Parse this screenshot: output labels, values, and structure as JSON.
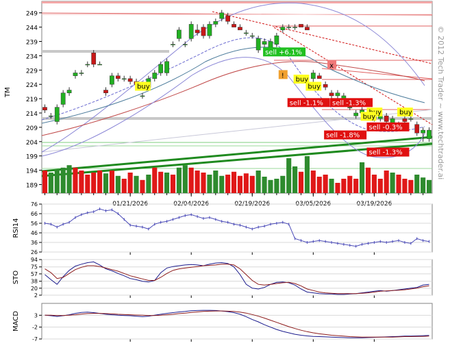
{
  "chart_data": [
    {
      "type": "candlestick",
      "ticker": "TM",
      "watermark": "© 2012 Tech Trader ~ www.techtrader.ai",
      "ylim": [
        186,
        253
      ],
      "y_ticks": [
        189,
        194,
        199,
        204,
        209,
        214,
        219,
        224,
        229,
        234,
        239,
        244,
        249
      ],
      "x_ticks": [
        "01/21/2026",
        "02/04/2026",
        "02/19/2026",
        "03/05/2026",
        "03/19/2026"
      ],
      "x_tick_index": [
        14,
        24,
        34,
        44,
        54
      ],
      "n_bars": 64,
      "candles": [
        {
          "o": 216,
          "h": 217,
          "l": 214,
          "c": 215
        },
        {
          "o": 213,
          "h": 214,
          "l": 212,
          "c": 213
        },
        {
          "o": 211,
          "h": 217,
          "l": 210,
          "c": 216
        },
        {
          "o": 217,
          "h": 222,
          "l": 216,
          "c": 221
        },
        {
          "o": 221,
          "h": 223,
          "l": 220,
          "c": 222
        },
        {
          "o": 227,
          "h": 229,
          "l": 226,
          "c": 228
        },
        {
          "o": 228,
          "h": 229,
          "l": 227,
          "c": 228
        },
        {
          "o": 231,
          "h": 232,
          "l": 230,
          "c": 231
        },
        {
          "o": 235,
          "h": 236,
          "l": 230,
          "c": 231
        },
        {
          "o": 231,
          "h": 232,
          "l": 231,
          "c": 231
        },
        {
          "o": 222,
          "h": 223,
          "l": 220,
          "c": 221
        },
        {
          "o": 224,
          "h": 228,
          "l": 223,
          "c": 227
        },
        {
          "o": 227,
          "h": 228,
          "l": 225,
          "c": 226
        },
        {
          "o": 226,
          "h": 227,
          "l": 225,
          "c": 226
        },
        {
          "o": 226,
          "h": 227,
          "l": 224,
          "c": 225
        },
        {
          "o": 225,
          "h": 226,
          "l": 223,
          "c": 224
        },
        {
          "o": 220,
          "h": 221,
          "l": 219,
          "c": 220
        },
        {
          "o": 223,
          "h": 227,
          "l": 222,
          "c": 226
        },
        {
          "o": 226,
          "h": 229,
          "l": 225,
          "c": 228
        },
        {
          "o": 228,
          "h": 232,
          "l": 227,
          "c": 231
        },
        {
          "o": 228,
          "h": 233,
          "l": 227,
          "c": 232
        },
        {
          "o": 238,
          "h": 239,
          "l": 237,
          "c": 238
        },
        {
          "o": 240,
          "h": 244,
          "l": 239,
          "c": 243
        },
        {
          "o": 238,
          "h": 239,
          "l": 237,
          "c": 238
        },
        {
          "o": 240,
          "h": 246,
          "l": 239,
          "c": 245
        },
        {
          "o": 243,
          "h": 245,
          "l": 241,
          "c": 242
        },
        {
          "o": 244,
          "h": 245,
          "l": 240,
          "c": 241
        },
        {
          "o": 241,
          "h": 246,
          "l": 240,
          "c": 245
        },
        {
          "o": 245,
          "h": 247,
          "l": 244,
          "c": 246
        },
        {
          "o": 247,
          "h": 250,
          "l": 246,
          "c": 249
        },
        {
          "o": 248,
          "h": 249,
          "l": 245,
          "c": 246
        },
        {
          "o": 245,
          "h": 246,
          "l": 244,
          "c": 244
        },
        {
          "o": 244,
          "h": 245,
          "l": 243,
          "c": 243
        },
        {
          "o": 242,
          "h": 243,
          "l": 241,
          "c": 242
        },
        {
          "o": 241,
          "h": 242,
          "l": 240,
          "c": 241
        },
        {
          "o": 236,
          "h": 241,
          "l": 235,
          "c": 240
        },
        {
          "o": 238,
          "h": 240,
          "l": 237,
          "c": 239
        },
        {
          "o": 236,
          "h": 240,
          "l": 235,
          "c": 239
        },
        {
          "o": 238,
          "h": 242,
          "l": 237,
          "c": 241
        },
        {
          "o": 243,
          "h": 245,
          "l": 242,
          "c": 244
        },
        {
          "o": 244,
          "h": 245,
          "l": 243,
          "c": 244
        },
        {
          "o": 244,
          "h": 245,
          "l": 243,
          "c": 244
        },
        {
          "o": 245,
          "h": 245,
          "l": 244,
          "c": 244
        },
        {
          "o": 244,
          "h": 245,
          "l": 243,
          "c": 243
        },
        {
          "o": 226,
          "h": 229,
          "l": 224,
          "c": 228
        },
        {
          "o": 227,
          "h": 228,
          "l": 226,
          "c": 226
        },
        {
          "o": 224,
          "h": 225,
          "l": 222,
          "c": 223
        },
        {
          "o": 221,
          "h": 222,
          "l": 219,
          "c": 220
        },
        {
          "o": 220,
          "h": 222,
          "l": 218,
          "c": 221
        },
        {
          "o": 219,
          "h": 221,
          "l": 217,
          "c": 220
        },
        {
          "o": 216,
          "h": 217,
          "l": 215,
          "c": 216
        },
        {
          "o": 213,
          "h": 215,
          "l": 212,
          "c": 214
        },
        {
          "o": 214,
          "h": 216,
          "l": 213,
          "c": 215
        },
        {
          "o": 214,
          "h": 215,
          "l": 212,
          "c": 213
        },
        {
          "o": 212,
          "h": 214,
          "l": 211,
          "c": 213
        },
        {
          "o": 212,
          "h": 214,
          "l": 211,
          "c": 213
        },
        {
          "o": 213,
          "h": 214,
          "l": 210,
          "c": 211
        },
        {
          "o": 210,
          "h": 213,
          "l": 208,
          "c": 212
        },
        {
          "o": 210,
          "h": 211,
          "l": 209,
          "c": 210
        },
        {
          "o": 212,
          "h": 213,
          "l": 210,
          "c": 211
        },
        {
          "o": 212,
          "h": 213,
          "l": 211,
          "c": 212
        },
        {
          "o": 210,
          "h": 211,
          "l": 206,
          "c": 207
        },
        {
          "o": 207,
          "h": 209,
          "l": 204,
          "c": 208
        },
        {
          "o": 205,
          "h": 209,
          "l": 204,
          "c": 208
        }
      ],
      "volume_relative": [
        0.55,
        0.5,
        0.58,
        0.62,
        0.68,
        0.62,
        0.55,
        0.45,
        0.5,
        0.55,
        0.48,
        0.55,
        0.42,
        0.35,
        0.5,
        0.42,
        0.32,
        0.45,
        0.62,
        0.52,
        0.5,
        0.45,
        0.62,
        0.68,
        0.62,
        0.55,
        0.5,
        0.45,
        0.55,
        0.42,
        0.45,
        0.52,
        0.42,
        0.48,
        0.42,
        0.55,
        0.4,
        0.32,
        0.35,
        0.42,
        0.85,
        0.65,
        0.52,
        0.9,
        0.55,
        0.4,
        0.45,
        0.35,
        0.25,
        0.35,
        0.42,
        0.35,
        0.75,
        0.62,
        0.45,
        0.35,
        0.55,
        0.5,
        0.45,
        0.35,
        0.32,
        0.45,
        0.38,
        0.32
      ],
      "volume_up": [
        false,
        true,
        true,
        true,
        true,
        false,
        false,
        false,
        false,
        false,
        true,
        false,
        true,
        false,
        false,
        true,
        false,
        true,
        false,
        false,
        true,
        false,
        true,
        true,
        false,
        false,
        false,
        true,
        true,
        true,
        false,
        false,
        false,
        false,
        false,
        true,
        true,
        true,
        true,
        true,
        true,
        true,
        false,
        true,
        false,
        false,
        false,
        true,
        false,
        false,
        false,
        false,
        true,
        false,
        false,
        false,
        false,
        true,
        false,
        false,
        false,
        true,
        true,
        true
      ],
      "signals": [
        {
          "label": "buy",
          "kind": "buy",
          "bar": 15,
          "price": 222.5
        },
        {
          "label": "sell +6.1%",
          "kind": "sell-win",
          "bar": 36,
          "price": 234.5
        },
        {
          "label": "buy",
          "kind": "buy",
          "bar": 41,
          "price": 225
        },
        {
          "label": "buy",
          "kind": "buy",
          "bar": 43,
          "price": 222.5
        },
        {
          "label": "sell -1.1%",
          "kind": "sell-loss",
          "bar": 40,
          "price": 216.8
        },
        {
          "label": "sell -1.3%",
          "kind": "sell-loss",
          "bar": 47,
          "price": 216.8
        },
        {
          "label": "buy",
          "kind": "buy",
          "bar": 53,
          "price": 213.5
        },
        {
          "label": "buy",
          "kind": "buy",
          "bar": 52,
          "price": 212
        },
        {
          "label": "buy",
          "kind": "buy",
          "bar": 58,
          "price": 213.5
        },
        {
          "label": "sell -0.3%",
          "kind": "sell-loss",
          "bar": 53,
          "price": 208.3
        },
        {
          "label": "sell -1.8%",
          "kind": "sell-loss",
          "bar": 46,
          "price": 205.5
        },
        {
          "label": "sell -1.3%",
          "kind": "sell-loss",
          "bar": 53,
          "price": 199.5
        }
      ],
      "markers": [
        {
          "label": "x",
          "bar": 47,
          "price": 230.8,
          "color": "#f07878"
        },
        {
          "label": "!",
          "bar": 39,
          "price": 227.3,
          "color": "#f0a030"
        }
      ]
    },
    {
      "type": "line",
      "name": "RSI14",
      "ylim": [
        26,
        76
      ],
      "y_ticks": [
        26,
        36,
        46,
        56,
        66,
        76
      ],
      "values": [
        56,
        55,
        52,
        55,
        57,
        62,
        65,
        67,
        68,
        71,
        69,
        70,
        66,
        60,
        54,
        53,
        52,
        50,
        55,
        57,
        58,
        60,
        62,
        64,
        65,
        63,
        61,
        62,
        60,
        58,
        57,
        55,
        54,
        52,
        50,
        52,
        53,
        55,
        56,
        57,
        55,
        40,
        38,
        36,
        37,
        38,
        37,
        36,
        35,
        34,
        33,
        32,
        34,
        35,
        36,
        37,
        36,
        37,
        38,
        36,
        35,
        40,
        38,
        37
      ]
    },
    {
      "type": "line",
      "name": "STO",
      "ylim": [
        2,
        94
      ],
      "y_ticks": [
        2,
        20,
        38,
        57,
        75,
        94
      ],
      "series": [
        {
          "values": [
            55,
            42,
            30,
            50,
            66,
            77,
            82,
            86,
            88,
            80,
            70,
            65,
            58,
            52,
            45,
            42,
            38,
            36,
            40,
            60,
            72,
            76,
            78,
            80,
            81,
            80,
            78,
            82,
            85,
            86,
            84,
            75,
            55,
            30,
            20,
            18,
            22,
            30,
            35,
            36,
            34,
            28,
            18,
            10,
            8,
            6,
            5,
            5,
            4,
            4,
            5,
            6,
            8,
            10,
            12,
            14,
            12,
            14,
            16,
            18,
            20,
            22,
            28,
            30
          ],
          "color": "#1a1a8c"
        },
        {
          "values": [
            70,
            60,
            45,
            48,
            58,
            68,
            74,
            78,
            78,
            76,
            72,
            68,
            64,
            58,
            52,
            48,
            44,
            40,
            40,
            48,
            58,
            66,
            70,
            72,
            74,
            76,
            78,
            79,
            80,
            82,
            82,
            80,
            70,
            55,
            40,
            30,
            28,
            30,
            32,
            34,
            35,
            32,
            26,
            18,
            14,
            10,
            8,
            7,
            6,
            6,
            6,
            6,
            7,
            8,
            10,
            12,
            13,
            14,
            15,
            16,
            18,
            20,
            24,
            26
          ],
          "color": "#8c1a1a"
        }
      ]
    },
    {
      "type": "line",
      "name": "MACD",
      "ylim": [
        -7,
        8
      ],
      "y_ticks": [
        -7,
        -2,
        3
      ],
      "series": [
        {
          "values": [
            3,
            2.8,
            2.5,
            2.8,
            3.2,
            3.8,
            4.2,
            4.3,
            4.1,
            3.8,
            3.4,
            3.2,
            3,
            2.9,
            2.8,
            2.6,
            2.4,
            2.6,
            3,
            3.4,
            3.8,
            4.1,
            4.4,
            4.6,
            4.9,
            5,
            5.1,
            5.1,
            5,
            4.8,
            4.5,
            4.1,
            3.4,
            2.4,
            1.2,
            0.2,
            -1,
            -2,
            -3,
            -3.8,
            -4.4,
            -5,
            -5.4,
            -5.7,
            -5.9,
            -6,
            -6.1,
            -6.2,
            -6.3,
            -6.4,
            -6.5,
            -6.5,
            -6.5,
            -6.4,
            -6.3,
            -6.2,
            -6.1,
            -6,
            -5.9,
            -5.8,
            -5.8,
            -5.7,
            -5.6,
            -5.5
          ],
          "color": "#1a1a8c"
        },
        {
          "values": [
            3,
            3,
            2.9,
            2.9,
            3,
            3.2,
            3.5,
            3.7,
            3.8,
            3.8,
            3.7,
            3.6,
            3.4,
            3.3,
            3.2,
            3.1,
            3,
            2.9,
            2.9,
            3,
            3.2,
            3.4,
            3.7,
            3.9,
            4.2,
            4.4,
            4.6,
            4.7,
            4.8,
            4.8,
            4.7,
            4.6,
            4.3,
            3.9,
            3.3,
            2.6,
            1.8,
            0.9,
            0,
            -0.9,
            -1.8,
            -2.6,
            -3.3,
            -3.9,
            -4.4,
            -4.8,
            -5.1,
            -5.4,
            -5.6,
            -5.8,
            -6,
            -6.1,
            -6.2,
            -6.2,
            -6.2,
            -6.2,
            -6.2,
            -6.2,
            -6.1,
            -6,
            -6,
            -5.9,
            -5.9,
            -5.8
          ],
          "color": "#8c1a1a"
        }
      ]
    }
  ]
}
